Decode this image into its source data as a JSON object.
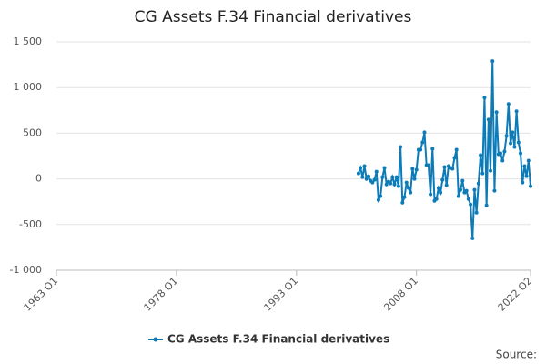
{
  "chart_data": {
    "type": "line",
    "title": "CG Assets F.34 Financial derivatives",
    "source": "Source:",
    "xlim": [
      "1963 Q1",
      "2022 Q2"
    ],
    "xticks": [
      "1963 Q1",
      "1978 Q1",
      "1993 Q1",
      "2008 Q1",
      "2022 Q2"
    ],
    "ylim": [
      -1000,
      1500
    ],
    "yticks": [
      {
        "value": -1000,
        "label": "-1 000"
      },
      -500,
      0,
      500,
      {
        "value": 1000,
        "label": "1 000"
      },
      {
        "value": 1500,
        "label": "1 500"
      }
    ],
    "grid": true,
    "legend": "bottom",
    "x": [
      "2000 Q4",
      "2001 Q1",
      "2001 Q2",
      "2001 Q3",
      "2001 Q4",
      "2002 Q1",
      "2002 Q2",
      "2002 Q3",
      "2002 Q4",
      "2003 Q1",
      "2003 Q2",
      "2003 Q3",
      "2003 Q4",
      "2004 Q1",
      "2004 Q2",
      "2004 Q3",
      "2004 Q4",
      "2005 Q1",
      "2005 Q2",
      "2005 Q3",
      "2005 Q4",
      "2006 Q1",
      "2006 Q2",
      "2006 Q3",
      "2006 Q4",
      "2007 Q1",
      "2007 Q2",
      "2007 Q3",
      "2007 Q4",
      "2008 Q1",
      "2008 Q2",
      "2008 Q3",
      "2008 Q4",
      "2009 Q1",
      "2009 Q2",
      "2009 Q3",
      "2009 Q4",
      "2010 Q1",
      "2010 Q2",
      "2010 Q3",
      "2010 Q4",
      "2011 Q1",
      "2011 Q2",
      "2011 Q3",
      "2011 Q4",
      "2012 Q1",
      "2012 Q2",
      "2012 Q3",
      "2012 Q4",
      "2013 Q1",
      "2013 Q2",
      "2013 Q3",
      "2013 Q4",
      "2014 Q1",
      "2014 Q2",
      "2014 Q3",
      "2014 Q4",
      "2015 Q1",
      "2015 Q2",
      "2015 Q3",
      "2015 Q4",
      "2016 Q1",
      "2016 Q2",
      "2016 Q3",
      "2016 Q4",
      "2017 Q1",
      "2017 Q2",
      "2017 Q3",
      "2017 Q4",
      "2018 Q1",
      "2018 Q2",
      "2018 Q3",
      "2018 Q4",
      "2019 Q1",
      "2019 Q2",
      "2019 Q3",
      "2019 Q4",
      "2020 Q1",
      "2020 Q2",
      "2020 Q3",
      "2020 Q4",
      "2021 Q1",
      "2021 Q2",
      "2021 Q3",
      "2021 Q4",
      "2022 Q1",
      "2022 Q2"
    ],
    "series": [
      {
        "name": "CG Assets F.34 Financial derivatives",
        "color": "#0c7bb8",
        "values": [
          60,
          120,
          20,
          140,
          0,
          30,
          -20,
          -40,
          -10,
          80,
          -230,
          -190,
          20,
          120,
          -60,
          -30,
          -50,
          20,
          -60,
          20,
          -80,
          350,
          -260,
          -200,
          -40,
          -100,
          -150,
          110,
          0,
          100,
          320,
          320,
          400,
          510,
          150,
          150,
          -170,
          330,
          -240,
          -220,
          -100,
          -150,
          -10,
          130,
          -70,
          140,
          120,
          110,
          230,
          320,
          -190,
          -120,
          -20,
          -150,
          -130,
          -220,
          -280,
          -650,
          -120,
          -370,
          -50,
          260,
          60,
          890,
          -290,
          650,
          90,
          1290,
          -130,
          730,
          270,
          280,
          200,
          300,
          470,
          820,
          390,
          510,
          350,
          740,
          400,
          280,
          -40,
          140,
          30,
          200,
          -80
        ]
      }
    ]
  }
}
